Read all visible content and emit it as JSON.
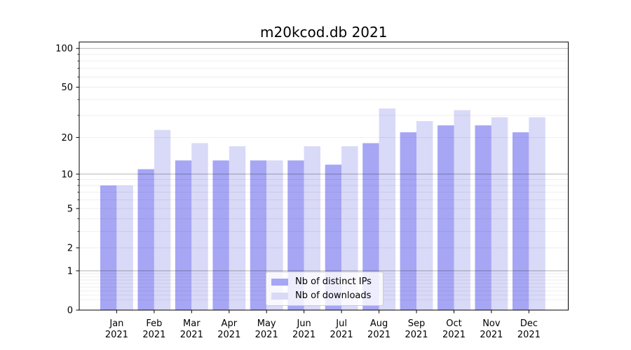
{
  "chart_data": {
    "type": "bar",
    "title": "m20kcod.db 2021",
    "categories": [
      "Jan",
      "Feb",
      "Mar",
      "Apr",
      "May",
      "Jun",
      "Jul",
      "Aug",
      "Sep",
      "Oct",
      "Nov",
      "Dec"
    ],
    "year_label": "2021",
    "series": [
      {
        "name": "Nb of distinct IPs",
        "color": "#a6a6f5",
        "values": [
          8,
          11,
          13,
          13,
          13,
          13,
          12,
          18,
          22,
          25,
          25,
          22
        ]
      },
      {
        "name": "Nb of downloads",
        "color": "#d9d9f8",
        "values": [
          8,
          23,
          18,
          17,
          13,
          17,
          17,
          34,
          27,
          33,
          29,
          29
        ]
      }
    ],
    "xlabel": "",
    "ylabel": "",
    "y_scale": "log1p",
    "y_ticks": [
      0,
      1,
      2,
      5,
      10,
      20,
      50,
      100
    ],
    "ylim": [
      0,
      113
    ],
    "grid": true,
    "legend_position": "lower center"
  },
  "colors": {
    "grid_major": "rgba(0,0,0,0.30)",
    "grid_minor": "rgba(0,0,0,0.07)",
    "spine": "#000000"
  }
}
